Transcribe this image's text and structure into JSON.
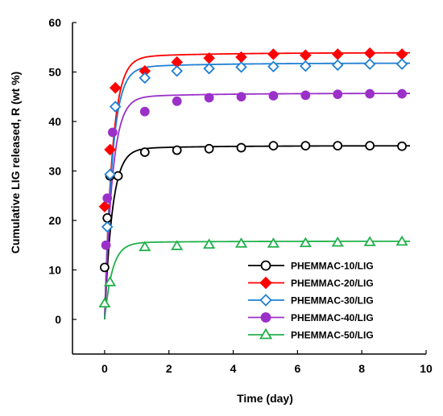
{
  "chart_data": {
    "type": "line",
    "title": "",
    "xlabel": "Time (day)",
    "ylabel": "Cumulative LIG released, R (wt %)",
    "xlim": [
      -1,
      10
    ],
    "ylim": [
      -7,
      60
    ],
    "xticks": [
      0,
      2,
      4,
      6,
      8,
      10
    ],
    "yticks": [
      0,
      10,
      20,
      30,
      40,
      50,
      60
    ],
    "grid": false,
    "legend_position": "bottom-right",
    "series": [
      {
        "name": "PHEMMAC-10/LIG",
        "color": "#000000",
        "marker": "circle",
        "filled": false,
        "x": [
          0,
          0.083,
          0.167,
          0.417,
          1.25,
          2.25,
          3.25,
          4.25,
          5.25,
          6.25,
          7.25,
          8.25,
          9.25
        ],
        "y": [
          10.5,
          20.5,
          29,
          29,
          33.8,
          34.2,
          34.5,
          34.7,
          35.1,
          35.1,
          35.1,
          35.1,
          35
        ],
        "fit_ymax": 35.1
      },
      {
        "name": "PHEMMAC-20/LIG",
        "color": "#ff0000",
        "marker": "diamond",
        "filled": true,
        "x": [
          0,
          0.167,
          0.333,
          1.25,
          2.25,
          3.25,
          4.25,
          5.25,
          6.25,
          7.25,
          8.25,
          9.25
        ],
        "y": [
          22.8,
          34.3,
          46.8,
          50.2,
          52,
          52.8,
          53,
          53.6,
          53.4,
          53.6,
          53.8,
          53.6
        ],
        "fit_ymax": 53.9
      },
      {
        "name": "PHEMMAC-30/LIG",
        "color": "#1f7fd2",
        "marker": "diamond",
        "filled": false,
        "x": [
          0.083,
          0.167,
          0.333,
          1.25,
          2.25,
          3.25,
          4.25,
          5.25,
          6.25,
          7.25,
          8.25,
          9.25
        ],
        "y": [
          18.7,
          29.3,
          43,
          48.8,
          50.2,
          50.7,
          51,
          51.1,
          51.2,
          51.4,
          51.6,
          51.6
        ],
        "fit_ymax": 51.8
      },
      {
        "name": "PHEMMAC-40/LIG",
        "color": "#9b30c8",
        "marker": "circle",
        "filled": true,
        "x": [
          0.042,
          0.083,
          0.25,
          1.25,
          2.25,
          3.25,
          4.25,
          5.25,
          6.25,
          7.25,
          8.25,
          9.25
        ],
        "y": [
          15,
          24.5,
          37.8,
          42,
          44.1,
          44.8,
          45,
          45.2,
          45.3,
          45.5,
          45.6,
          45.6
        ],
        "fit_ymax": 45.7
      },
      {
        "name": "PHEMMAC-50/LIG",
        "color": "#22b04b",
        "marker": "triangle",
        "filled": false,
        "x": [
          0,
          0.167,
          1.25,
          2.25,
          3.25,
          4.25,
          5.25,
          6.25,
          7.25,
          8.25,
          9.25
        ],
        "y": [
          3.2,
          7.5,
          14.6,
          14.8,
          15.1,
          15.3,
          15.3,
          15.4,
          15.5,
          15.6,
          15.7
        ],
        "fit_ymax": 15.8
      }
    ]
  }
}
